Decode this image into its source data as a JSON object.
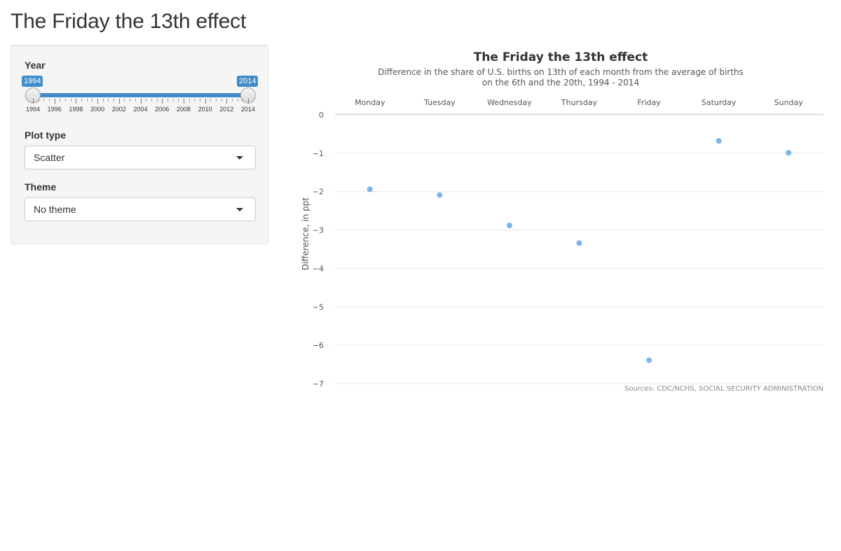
{
  "app": {
    "title": "The Friday the 13th effect"
  },
  "sidebar": {
    "year": {
      "label": "Year",
      "min": 1994,
      "max": 2014,
      "from": "1994",
      "to": "2014",
      "tick_labels": [
        "1994",
        "1996",
        "1998",
        "2000",
        "2002",
        "2004",
        "2006",
        "2008",
        "2010",
        "2012",
        "2014"
      ]
    },
    "plot_type": {
      "label": "Plot type",
      "selected": "Scatter"
    },
    "theme": {
      "label": "Theme",
      "selected": "No theme"
    }
  },
  "colors": {
    "accent": "#428bca",
    "point": "#7cb5ec",
    "grid": "#e6e6e6"
  },
  "chart_data": {
    "type": "scatter",
    "title": "The Friday the 13th effect",
    "subtitle_lines": [
      "Difference in the share of U.S. births on 13th of each month from the average of births",
      "on the 6th and the 20th, 1994 - 2014"
    ],
    "categories": [
      "Monday",
      "Tuesday",
      "Wednesday",
      "Thursday",
      "Friday",
      "Saturday",
      "Sunday"
    ],
    "values": [
      -1.94,
      -2.09,
      -2.88,
      -3.34,
      -6.39,
      -0.68,
      -0.99
    ],
    "ylabel": "Difference, in ppt",
    "ylim": [
      -7,
      0
    ],
    "yticks": [
      "0",
      "-1",
      "-2",
      "-3",
      "-4",
      "-5",
      "-6",
      "-7"
    ],
    "x_axis_position": "top",
    "grid": true,
    "credits": "Sources: CDC/NCHS, SOCIAL SECURITY ADMINISTRATION"
  }
}
